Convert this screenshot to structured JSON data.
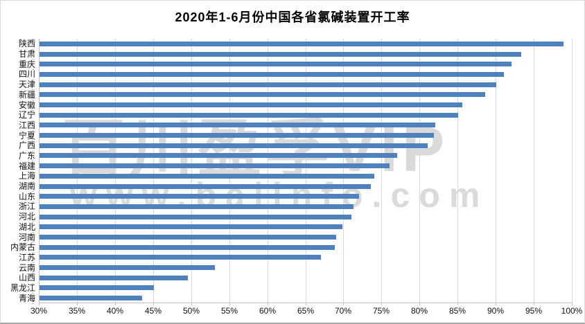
{
  "title": "2020年1-6月份中国各省氯碱装置开工率",
  "watermark": {
    "line1": "百川盈孚VIP",
    "line2": "www.baiinfo.com"
  },
  "colors": {
    "bar": "#4f81bd",
    "grid": "#d9d9d9",
    "axis": "#bfbfbf",
    "watermark": "#dadada",
    "text": "#111111"
  },
  "chart_data": {
    "type": "bar",
    "orientation": "horizontal",
    "title": "2020年1-6月份中国各省氯碱装置开工率",
    "categories": [
      "陕西",
      "甘肃",
      "重庆",
      "四川",
      "天津",
      "新疆",
      "安徽",
      "辽宁",
      "江西",
      "宁夏",
      "广西",
      "广东",
      "福建",
      "上海",
      "湖南",
      "山东",
      "浙江",
      "河北",
      "湖北",
      "河南",
      "内蒙古",
      "江苏",
      "云南",
      "山西",
      "黑龙江",
      "青海"
    ],
    "values": [
      98.8,
      93.3,
      92,
      91,
      90,
      88.5,
      85.5,
      85,
      82,
      81.8,
      81,
      77,
      76,
      74,
      73.5,
      72,
      71.2,
      71,
      69.8,
      69,
      68.8,
      67,
      53,
      49.5,
      45,
      43.5
    ],
    "unit": "%",
    "xlim": [
      30,
      100
    ],
    "x_tick_step": 5,
    "x_tick_labels": [
      "30%",
      "35%",
      "40%",
      "45%",
      "50%",
      "55%",
      "60%",
      "65%",
      "70%",
      "75%",
      "80%",
      "85%",
      "90%",
      "95%",
      "100%"
    ],
    "grid": true,
    "legend": false,
    "bar_color": "#4f81bd",
    "sort": "descending"
  }
}
